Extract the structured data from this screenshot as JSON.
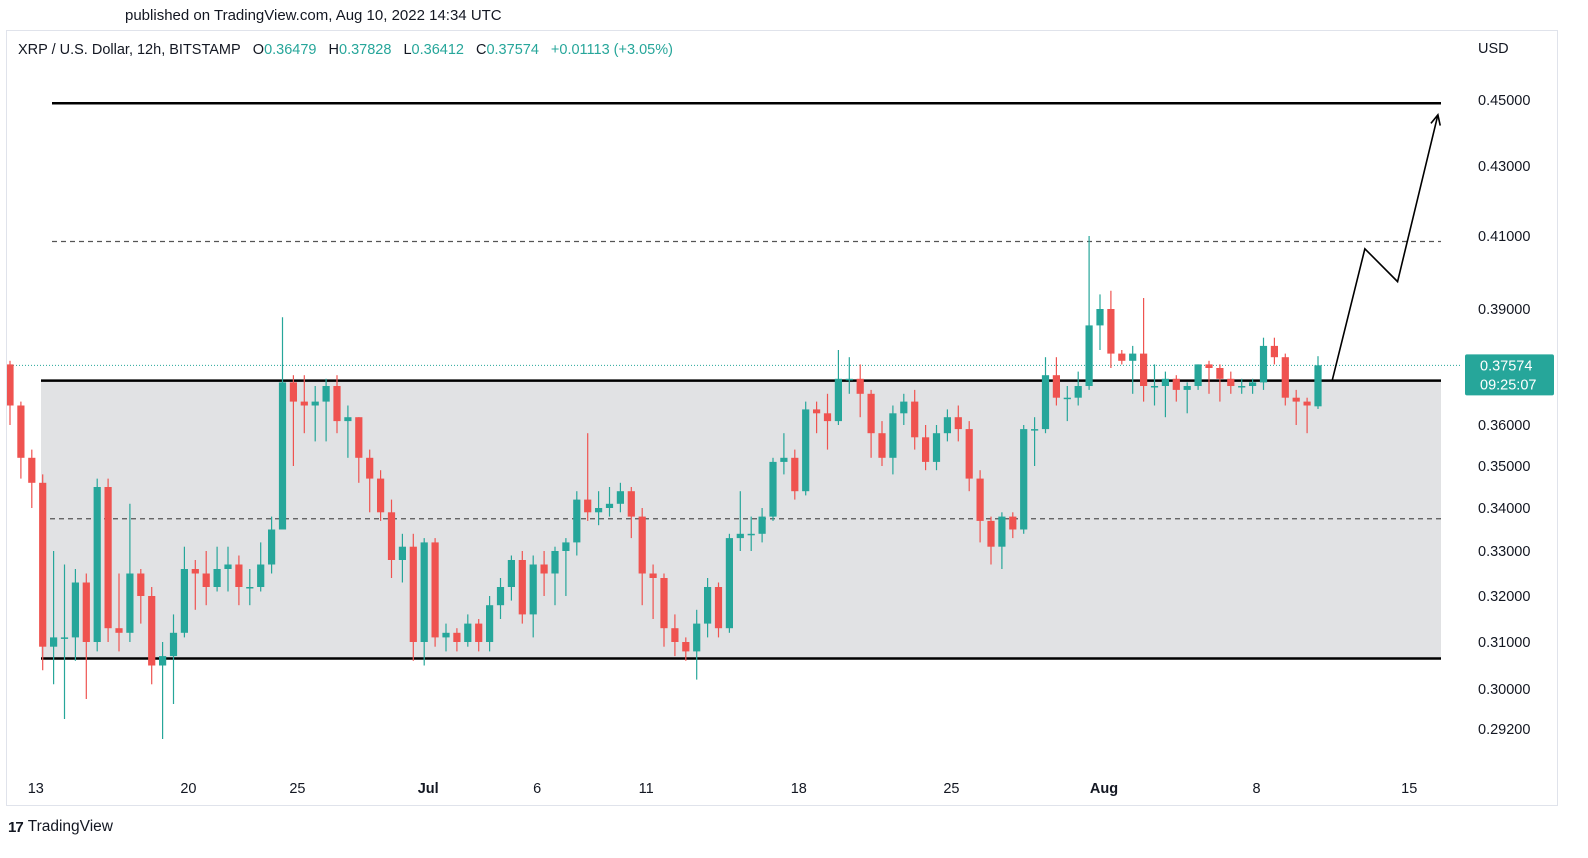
{
  "header": {
    "published": "published on TradingView.com, Aug 10, 2022 14:34 UTC"
  },
  "legend": {
    "symbol": "XRP / U.S. Dollar, 12h, BITSTAMP",
    "o_label": "O",
    "o_value": "0.36479",
    "h_label": "H",
    "h_value": "0.37828",
    "l_label": "L",
    "l_value": "0.36412",
    "c_label": "C",
    "c_value": "0.37574",
    "change": "+0.01113 (+3.05%)"
  },
  "footer": {
    "brand": "TradingView",
    "logo_text": "17"
  },
  "colors": {
    "up": "#26a69a",
    "down": "#ef5350",
    "range_fill": "#e1e2e4",
    "line": "#000000"
  },
  "chart_data": {
    "type": "candlestick",
    "currency": "USD",
    "y_ticks": [
      "0.45000",
      "0.43000",
      "0.41000",
      "0.39000",
      "0.36000",
      "0.35000",
      "0.34000",
      "0.33000",
      "0.32000",
      "0.31000",
      "0.30000",
      "0.29200"
    ],
    "x_ticks": [
      {
        "label": "13",
        "i": 2,
        "bold": false
      },
      {
        "label": "20",
        "i": 16,
        "bold": false
      },
      {
        "label": "25",
        "i": 26,
        "bold": false
      },
      {
        "label": "Jul",
        "i": 38,
        "bold": true
      },
      {
        "label": "6",
        "i": 48,
        "bold": false
      },
      {
        "label": "11",
        "i": 58,
        "bold": false
      },
      {
        "label": "18",
        "i": 72,
        "bold": false
      },
      {
        "label": "25",
        "i": 86,
        "bold": false
      },
      {
        "label": "Aug",
        "i": 100,
        "bold": true
      },
      {
        "label": "8",
        "i": 114,
        "bold": false
      },
      {
        "label": "15",
        "i": 128,
        "bold": false
      }
    ],
    "last_price": "0.37574",
    "countdown": "09:25:07",
    "levels": {
      "resistance_top": 0.449,
      "dashed_upper": 0.4085,
      "range_top": 0.3715,
      "dashed_mid": 0.3375,
      "range_bottom": 0.3065
    },
    "projection": [
      [
        121.3,
        0.3715
      ],
      [
        124.3,
        0.4065
      ],
      [
        127.3,
        0.3975
      ],
      [
        131,
        0.4455
      ]
    ],
    "candles": [
      [
        0.376,
        0.365,
        0.377,
        0.36
      ],
      [
        0.365,
        0.352,
        0.366,
        0.347
      ],
      [
        0.352,
        0.346,
        0.354,
        0.34
      ],
      [
        0.346,
        0.309,
        0.348,
        0.304
      ],
      [
        0.309,
        0.311,
        0.33,
        0.301
      ],
      [
        0.311,
        0.311,
        0.327,
        0.294
      ],
      [
        0.311,
        0.323,
        0.326,
        0.306
      ],
      [
        0.323,
        0.31,
        0.325,
        0.298
      ],
      [
        0.31,
        0.345,
        0.347,
        0.308
      ],
      [
        0.345,
        0.313,
        0.347,
        0.31
      ],
      [
        0.313,
        0.312,
        0.325,
        0.308
      ],
      [
        0.312,
        0.325,
        0.341,
        0.31
      ],
      [
        0.325,
        0.32,
        0.326,
        0.314
      ],
      [
        0.32,
        0.305,
        0.322,
        0.301
      ],
      [
        0.305,
        0.307,
        0.31,
        0.29
      ],
      [
        0.307,
        0.312,
        0.316,
        0.297
      ],
      [
        0.312,
        0.326,
        0.331,
        0.311
      ],
      [
        0.326,
        0.325,
        0.328,
        0.317
      ],
      [
        0.325,
        0.322,
        0.33,
        0.318
      ],
      [
        0.322,
        0.326,
        0.331,
        0.321
      ],
      [
        0.326,
        0.327,
        0.331,
        0.321
      ],
      [
        0.327,
        0.322,
        0.329,
        0.318
      ],
      [
        0.322,
        0.322,
        0.326,
        0.318
      ],
      [
        0.322,
        0.327,
        0.332,
        0.321
      ],
      [
        0.327,
        0.335,
        0.338,
        0.325
      ],
      [
        0.335,
        0.371,
        0.388,
        0.335
      ],
      [
        0.371,
        0.366,
        0.373,
        0.35
      ],
      [
        0.366,
        0.365,
        0.373,
        0.358
      ],
      [
        0.365,
        0.366,
        0.37,
        0.356
      ],
      [
        0.366,
        0.37,
        0.372,
        0.356
      ],
      [
        0.37,
        0.361,
        0.373,
        0.358
      ],
      [
        0.361,
        0.362,
        0.365,
        0.352
      ],
      [
        0.362,
        0.352,
        0.362,
        0.346
      ],
      [
        0.352,
        0.347,
        0.354,
        0.339
      ],
      [
        0.347,
        0.339,
        0.349,
        0.337
      ],
      [
        0.339,
        0.328,
        0.342,
        0.324
      ],
      [
        0.328,
        0.331,
        0.334,
        0.323
      ],
      [
        0.331,
        0.31,
        0.334,
        0.306
      ],
      [
        0.31,
        0.332,
        0.333,
        0.305
      ],
      [
        0.332,
        0.311,
        0.333,
        0.309
      ],
      [
        0.311,
        0.312,
        0.314,
        0.308
      ],
      [
        0.312,
        0.31,
        0.313,
        0.308
      ],
      [
        0.31,
        0.314,
        0.316,
        0.309
      ],
      [
        0.314,
        0.31,
        0.315,
        0.308
      ],
      [
        0.31,
        0.318,
        0.32,
        0.308
      ],
      [
        0.318,
        0.322,
        0.324,
        0.315
      ],
      [
        0.322,
        0.328,
        0.329,
        0.319
      ],
      [
        0.328,
        0.316,
        0.33,
        0.314
      ],
      [
        0.316,
        0.327,
        0.329,
        0.311
      ],
      [
        0.327,
        0.325,
        0.33,
        0.32
      ],
      [
        0.325,
        0.33,
        0.331,
        0.318
      ],
      [
        0.33,
        0.332,
        0.333,
        0.32
      ],
      [
        0.332,
        0.342,
        0.344,
        0.329
      ],
      [
        0.342,
        0.339,
        0.358,
        0.337
      ],
      [
        0.339,
        0.34,
        0.344,
        0.336
      ],
      [
        0.34,
        0.341,
        0.345,
        0.338
      ],
      [
        0.341,
        0.344,
        0.346,
        0.339
      ],
      [
        0.344,
        0.338,
        0.345,
        0.333
      ],
      [
        0.338,
        0.325,
        0.34,
        0.318
      ],
      [
        0.325,
        0.324,
        0.327,
        0.315
      ],
      [
        0.324,
        0.313,
        0.325,
        0.309
      ],
      [
        0.313,
        0.31,
        0.316,
        0.307
      ],
      [
        0.31,
        0.308,
        0.311,
        0.306
      ],
      [
        0.308,
        0.314,
        0.317,
        0.302
      ],
      [
        0.314,
        0.322,
        0.324,
        0.311
      ],
      [
        0.322,
        0.313,
        0.323,
        0.311
      ],
      [
        0.313,
        0.333,
        0.334,
        0.312
      ],
      [
        0.333,
        0.334,
        0.344,
        0.33
      ],
      [
        0.334,
        0.334,
        0.338,
        0.33
      ],
      [
        0.334,
        0.338,
        0.34,
        0.332
      ],
      [
        0.338,
        0.351,
        0.352,
        0.337
      ],
      [
        0.351,
        0.352,
        0.358,
        0.348
      ],
      [
        0.352,
        0.344,
        0.354,
        0.342
      ],
      [
        0.344,
        0.364,
        0.366,
        0.343
      ],
      [
        0.364,
        0.363,
        0.366,
        0.358
      ],
      [
        0.363,
        0.361,
        0.368,
        0.354
      ],
      [
        0.361,
        0.372,
        0.38,
        0.36
      ],
      [
        0.372,
        0.372,
        0.378,
        0.368
      ],
      [
        0.372,
        0.368,
        0.376,
        0.362
      ],
      [
        0.368,
        0.358,
        0.369,
        0.352
      ],
      [
        0.358,
        0.352,
        0.361,
        0.35
      ],
      [
        0.352,
        0.363,
        0.365,
        0.348
      ],
      [
        0.363,
        0.366,
        0.368,
        0.36
      ],
      [
        0.366,
        0.357,
        0.369,
        0.354
      ],
      [
        0.357,
        0.351,
        0.36,
        0.349
      ],
      [
        0.351,
        0.358,
        0.36,
        0.349
      ],
      [
        0.358,
        0.362,
        0.364,
        0.356
      ],
      [
        0.362,
        0.359,
        0.365,
        0.356
      ],
      [
        0.359,
        0.347,
        0.361,
        0.344
      ],
      [
        0.347,
        0.337,
        0.349,
        0.332
      ],
      [
        0.337,
        0.331,
        0.338,
        0.327
      ],
      [
        0.331,
        0.338,
        0.339,
        0.326
      ],
      [
        0.338,
        0.335,
        0.339,
        0.333
      ],
      [
        0.335,
        0.359,
        0.36,
        0.334
      ],
      [
        0.359,
        0.359,
        0.362,
        0.35
      ],
      [
        0.359,
        0.373,
        0.378,
        0.358
      ],
      [
        0.373,
        0.367,
        0.378,
        0.365
      ],
      [
        0.367,
        0.367,
        0.37,
        0.361
      ],
      [
        0.367,
        0.37,
        0.374,
        0.365
      ],
      [
        0.37,
        0.386,
        0.41,
        0.369
      ],
      [
        0.386,
        0.39,
        0.394,
        0.38
      ],
      [
        0.39,
        0.379,
        0.395,
        0.375
      ],
      [
        0.379,
        0.377,
        0.38,
        0.376
      ],
      [
        0.377,
        0.379,
        0.381,
        0.368
      ],
      [
        0.379,
        0.37,
        0.393,
        0.366
      ],
      [
        0.37,
        0.37,
        0.376,
        0.365
      ],
      [
        0.37,
        0.372,
        0.374,
        0.362
      ],
      [
        0.372,
        0.369,
        0.373,
        0.366
      ],
      [
        0.369,
        0.37,
        0.371,
        0.363
      ],
      [
        0.37,
        0.376,
        0.376,
        0.369
      ],
      [
        0.376,
        0.375,
        0.377,
        0.368
      ],
      [
        0.375,
        0.372,
        0.376,
        0.366
      ],
      [
        0.372,
        0.37,
        0.374,
        0.368
      ],
      [
        0.37,
        0.37,
        0.372,
        0.368
      ],
      [
        0.37,
        0.371,
        0.372,
        0.368
      ],
      [
        0.371,
        0.381,
        0.383,
        0.369
      ],
      [
        0.381,
        0.378,
        0.383,
        0.376
      ],
      [
        0.378,
        0.367,
        0.379,
        0.365
      ],
      [
        0.367,
        0.366,
        0.369,
        0.36
      ],
      [
        0.366,
        0.365,
        0.367,
        0.358
      ],
      [
        0.36479,
        0.37574,
        0.37828,
        0.36412
      ]
    ]
  }
}
